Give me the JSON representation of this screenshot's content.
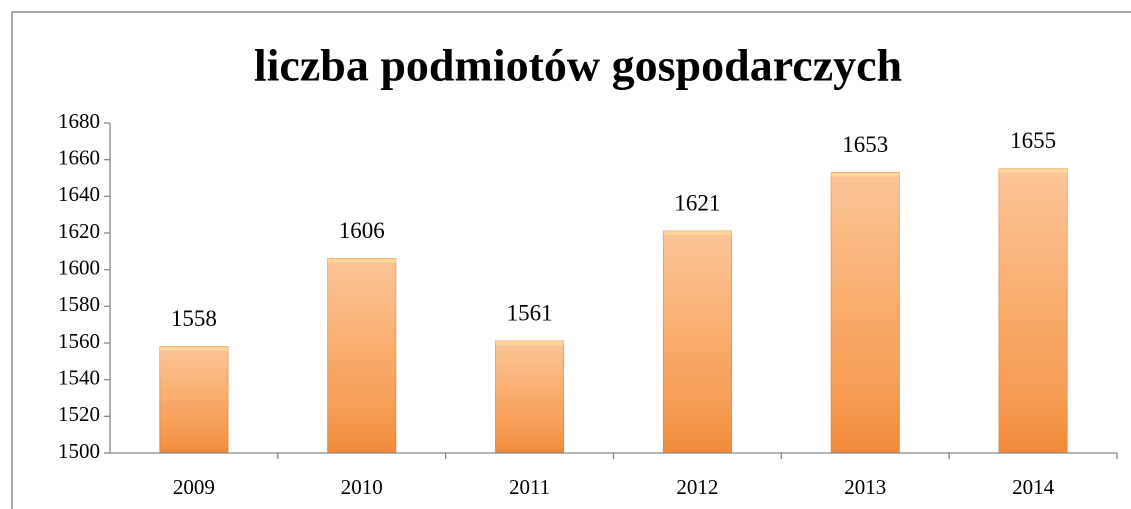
{
  "chart_data": {
    "type": "bar",
    "title": "liczba podmiotów gospodarczych",
    "categories": [
      "2009",
      "2010",
      "2011",
      "2012",
      "2013",
      "2014"
    ],
    "values": [
      1558,
      1606,
      1561,
      1621,
      1653,
      1655
    ],
    "color": "#f79646",
    "ylim": [
      1500,
      1680
    ],
    "yticks": [
      1500,
      1520,
      1540,
      1560,
      1580,
      1600,
      1620,
      1640,
      1660,
      1680
    ],
    "grid": false
  }
}
